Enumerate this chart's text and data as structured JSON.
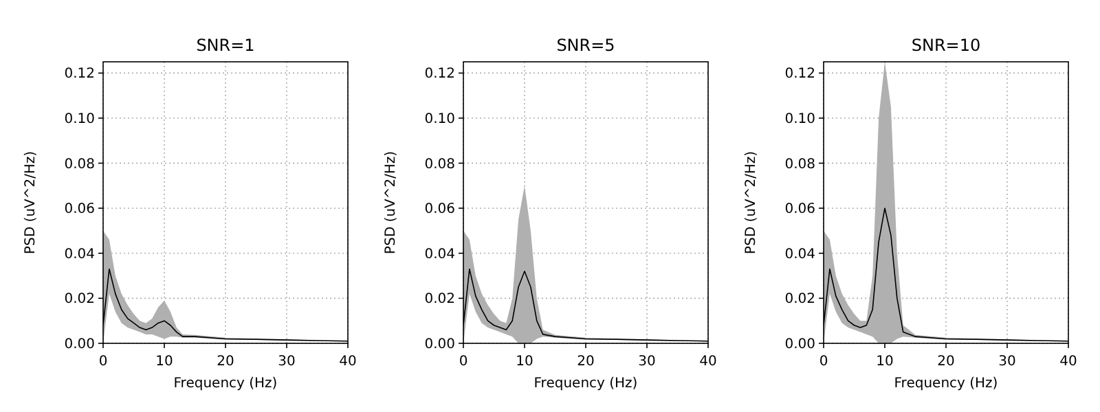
{
  "chart_data": [
    {
      "type": "line",
      "title": "SNR=1",
      "xlabel": "Frequency (Hz)",
      "ylabel": "PSD (uV^2/Hz)",
      "xlim": [
        0,
        40
      ],
      "ylim": [
        0,
        0.125
      ],
      "xticks": [
        0,
        10,
        20,
        30,
        40
      ],
      "yticks": [
        {
          "value": 0,
          "label": "0.00"
        },
        {
          "value": 0.02,
          "label": "0.02"
        },
        {
          "value": 0.04,
          "label": "0.04"
        },
        {
          "value": 0.06,
          "label": "0.06"
        },
        {
          "value": 0.08,
          "label": "0.08"
        },
        {
          "value": 0.1,
          "label": "0.10"
        },
        {
          "value": 0.12,
          "label": "0.12"
        }
      ],
      "grid": true,
      "x": [
        0,
        1,
        2,
        3,
        4,
        5,
        6,
        7,
        8,
        9,
        10,
        11,
        12,
        13,
        15,
        20,
        25,
        30,
        35,
        40
      ],
      "series": [
        {
          "color": "#000000",
          "values": [
            0.008,
            0.033,
            0.022,
            0.015,
            0.011,
            0.009,
            0.007,
            0.006,
            0.007,
            0.009,
            0.01,
            0.008,
            0.005,
            0.003,
            0.003,
            0.002,
            0.0018,
            0.0015,
            0.0012,
            0.001
          ],
          "lower": [
            0.0,
            0.022,
            0.014,
            0.009,
            0.007,
            0.006,
            0.005,
            0.004,
            0.004,
            0.003,
            0.002,
            0.003,
            0.003,
            0.0025,
            0.0025,
            0.0016,
            0.0015,
            0.0012,
            0.001,
            0.0008
          ],
          "upper": [
            0.05,
            0.046,
            0.03,
            0.022,
            0.017,
            0.013,
            0.01,
            0.009,
            0.011,
            0.016,
            0.019,
            0.014,
            0.007,
            0.004,
            0.0037,
            0.0025,
            0.002,
            0.0018,
            0.0014,
            0.0012
          ]
        }
      ]
    },
    {
      "type": "line",
      "title": "SNR=5",
      "xlabel": "Frequency (Hz)",
      "ylabel": "PSD (uV^2/Hz)",
      "xlim": [
        0,
        40
      ],
      "ylim": [
        0,
        0.125
      ],
      "xticks": [
        0,
        10,
        20,
        30,
        40
      ],
      "yticks": [
        {
          "value": 0,
          "label": "0.00"
        },
        {
          "value": 0.02,
          "label": "0.02"
        },
        {
          "value": 0.04,
          "label": "0.04"
        },
        {
          "value": 0.06,
          "label": "0.06"
        },
        {
          "value": 0.08,
          "label": "0.08"
        },
        {
          "value": 0.1,
          "label": "0.10"
        },
        {
          "value": 0.12,
          "label": "0.12"
        }
      ],
      "grid": true,
      "x": [
        0,
        1,
        2,
        3,
        4,
        5,
        6,
        7,
        8,
        9,
        10,
        11,
        12,
        13,
        15,
        20,
        25,
        30,
        35,
        40
      ],
      "series": [
        {
          "color": "#000000",
          "values": [
            0.008,
            0.033,
            0.021,
            0.015,
            0.01,
            0.008,
            0.007,
            0.006,
            0.01,
            0.025,
            0.032,
            0.025,
            0.01,
            0.004,
            0.003,
            0.002,
            0.0018,
            0.0015,
            0.0012,
            0.001
          ],
          "lower": [
            0.0,
            0.022,
            0.014,
            0.009,
            0.007,
            0.006,
            0.005,
            0.004,
            0.003,
            0.0,
            0.0,
            0.0,
            0.002,
            0.003,
            0.0025,
            0.0016,
            0.0015,
            0.0012,
            0.001,
            0.0008
          ],
          "upper": [
            0.05,
            0.046,
            0.03,
            0.022,
            0.017,
            0.013,
            0.01,
            0.009,
            0.02,
            0.055,
            0.07,
            0.05,
            0.02,
            0.006,
            0.0037,
            0.0025,
            0.002,
            0.0018,
            0.0014,
            0.0012
          ]
        }
      ]
    },
    {
      "type": "line",
      "title": "SNR=10",
      "xlabel": "Frequency (Hz)",
      "ylabel": "PSD (uV^2/Hz)",
      "xlim": [
        0,
        40
      ],
      "ylim": [
        0,
        0.125
      ],
      "xticks": [
        0,
        10,
        20,
        30,
        40
      ],
      "yticks": [
        {
          "value": 0,
          "label": "0.00"
        },
        {
          "value": 0.02,
          "label": "0.02"
        },
        {
          "value": 0.04,
          "label": "0.04"
        },
        {
          "value": 0.06,
          "label": "0.06"
        },
        {
          "value": 0.08,
          "label": "0.08"
        },
        {
          "value": 0.1,
          "label": "0.10"
        },
        {
          "value": 0.12,
          "label": "0.12"
        }
      ],
      "grid": true,
      "x": [
        0,
        1,
        2,
        3,
        4,
        5,
        6,
        7,
        8,
        9,
        10,
        11,
        12,
        13,
        15,
        20,
        25,
        30,
        35,
        40
      ],
      "series": [
        {
          "color": "#000000",
          "values": [
            0.008,
            0.033,
            0.021,
            0.015,
            0.01,
            0.008,
            0.007,
            0.008,
            0.015,
            0.045,
            0.06,
            0.048,
            0.02,
            0.005,
            0.003,
            0.002,
            0.0018,
            0.0015,
            0.0012,
            0.001
          ],
          "lower": [
            0.0,
            0.022,
            0.014,
            0.009,
            0.007,
            0.006,
            0.005,
            0.004,
            0.003,
            0.0,
            0.0,
            0.0,
            0.002,
            0.003,
            0.0025,
            0.0016,
            0.0015,
            0.0012,
            0.001,
            0.0008
          ],
          "upper": [
            0.05,
            0.046,
            0.03,
            0.022,
            0.017,
            0.013,
            0.01,
            0.01,
            0.03,
            0.1,
            0.125,
            0.105,
            0.04,
            0.008,
            0.0037,
            0.0025,
            0.002,
            0.0018,
            0.0014,
            0.0012
          ]
        }
      ]
    }
  ]
}
